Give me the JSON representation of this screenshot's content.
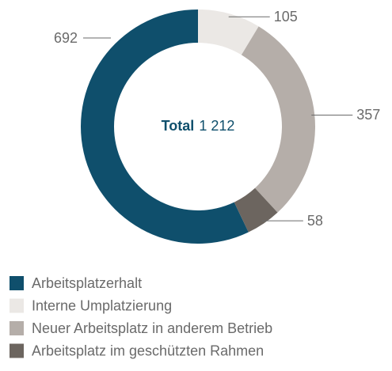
{
  "chart_data": {
    "type": "pie",
    "center_title": "Total",
    "center_value": "1 212",
    "categories": [
      "Arbeitsplatzerhalt",
      "Interne Umplatzierung",
      "Neuer Arbeitsplatz in anderem Betrieb",
      "Arbeitsplatz im geschützten Rahmen"
    ],
    "values": [
      692,
      105,
      357,
      58
    ],
    "colors": [
      "#0f4f6c",
      "#ebe8e5",
      "#b5aea9",
      "#6c655f"
    ],
    "legend": "bottom-left"
  }
}
